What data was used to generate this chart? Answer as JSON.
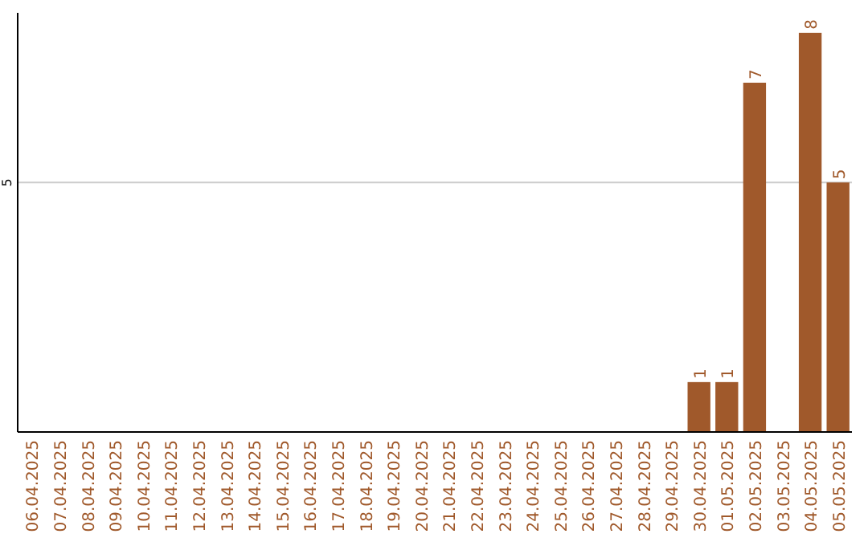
{
  "chart_data": {
    "type": "bar",
    "categories": [
      "06.04.2025",
      "07.04.2025",
      "08.04.2025",
      "09.04.2025",
      "10.04.2025",
      "11.04.2025",
      "12.04.2025",
      "13.04.2025",
      "14.04.2025",
      "15.04.2025",
      "16.04.2025",
      "17.04.2025",
      "18.04.2025",
      "19.04.2025",
      "20.04.2025",
      "21.04.2025",
      "22.04.2025",
      "23.04.2025",
      "24.04.2025",
      "25.04.2025",
      "26.04.2025",
      "27.04.2025",
      "28.04.2025",
      "29.04.2025",
      "30.04.2025",
      "01.05.2025",
      "02.05.2025",
      "03.05.2025",
      "04.05.2025",
      "05.05.2025"
    ],
    "values": [
      null,
      null,
      null,
      null,
      null,
      null,
      null,
      null,
      null,
      null,
      null,
      null,
      null,
      null,
      null,
      null,
      null,
      null,
      null,
      null,
      null,
      null,
      null,
      null,
      1,
      1,
      7,
      null,
      8,
      5
    ],
    "data_labels": true,
    "color": "#a0592b",
    "ylim": [
      0,
      8.4
    ],
    "yticks": [
      5
    ],
    "grid": "y"
  }
}
